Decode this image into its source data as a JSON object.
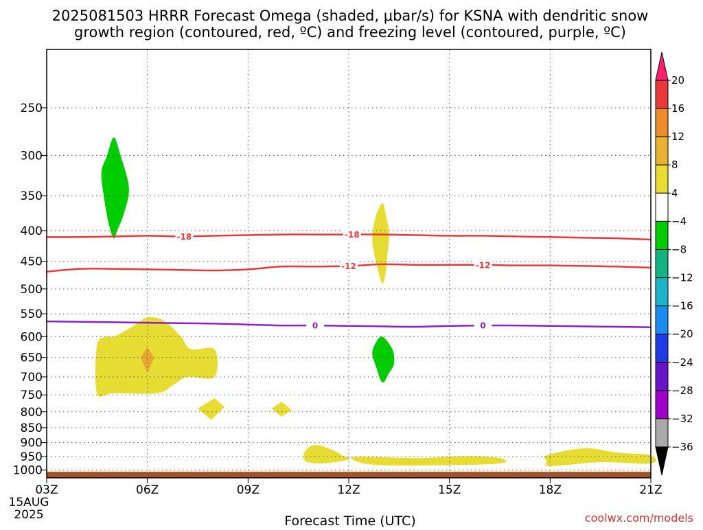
{
  "chart_data": {
    "type": "time-height",
    "title_line1": "2025081503 HRRR Forecast Omega (shaded, μbar/s) for KSNA with dendritic snow",
    "title_line2": "growth region (contoured, red, ºC) and freezing level (contoured, purple, ºC)",
    "xlabel": "Forecast Time (UTC)",
    "credit": "coolwx.com/models",
    "x_ticks": [
      "03Z",
      "06Z",
      "09Z",
      "12Z",
      "15Z",
      "18Z",
      "21Z"
    ],
    "x_tick_hours": [
      3,
      6,
      9,
      12,
      15,
      18,
      21
    ],
    "date_line1": "15AUG",
    "date_line2": "2025",
    "xlim": [
      3,
      21
    ],
    "y_scale": "log",
    "ylim": [
      1030,
      200
    ],
    "y_ticks": [
      250,
      300,
      350,
      400,
      450,
      500,
      550,
      600,
      650,
      700,
      750,
      800,
      850,
      900,
      950,
      1000
    ],
    "y_tick_labels": [
      "250",
      "300",
      "350",
      "400",
      "450",
      "500",
      "550",
      "600",
      "650",
      "700",
      "750",
      "800",
      "850",
      "900",
      "950",
      "1000"
    ],
    "grid": true,
    "contours": [
      {
        "label": "-18",
        "color": "#e8383a",
        "label_hours": [
          7.1,
          12.1
        ],
        "points": [
          [
            3,
            410
          ],
          [
            4,
            410
          ],
          [
            5,
            409
          ],
          [
            6,
            408
          ],
          [
            7,
            409
          ],
          [
            8,
            408
          ],
          [
            9,
            407
          ],
          [
            10,
            406
          ],
          [
            11,
            406
          ],
          [
            12,
            406
          ],
          [
            13,
            406
          ],
          [
            14,
            407
          ],
          [
            15,
            408
          ],
          [
            16,
            408
          ],
          [
            17,
            409
          ],
          [
            18,
            410
          ],
          [
            19,
            411
          ],
          [
            20,
            412
          ],
          [
            21,
            414
          ]
        ]
      },
      {
        "label": "-12",
        "color": "#e8383a",
        "label_hours": [
          12.0,
          16.0
        ],
        "points": [
          [
            3,
            468
          ],
          [
            4,
            463
          ],
          [
            5,
            463
          ],
          [
            6,
            464
          ],
          [
            7,
            465
          ],
          [
            8,
            466
          ],
          [
            9,
            464
          ],
          [
            10,
            459
          ],
          [
            11,
            459
          ],
          [
            12,
            458
          ],
          [
            13,
            455
          ],
          [
            14,
            456
          ],
          [
            15,
            456
          ],
          [
            16,
            456
          ],
          [
            17,
            457
          ],
          [
            18,
            457
          ],
          [
            19,
            458
          ],
          [
            20,
            459
          ],
          [
            21,
            461
          ]
        ]
      },
      {
        "label": "0",
        "color": "#8c1fc8",
        "label_hours": [
          11.0,
          16.0
        ],
        "points": [
          [
            3,
            566
          ],
          [
            4,
            567
          ],
          [
            5,
            568
          ],
          [
            6,
            569
          ],
          [
            7,
            570
          ],
          [
            8,
            571
          ],
          [
            9,
            573
          ],
          [
            10,
            575
          ],
          [
            11,
            575
          ],
          [
            12,
            576
          ],
          [
            13,
            577
          ],
          [
            14,
            578
          ],
          [
            15,
            576
          ],
          [
            16,
            575
          ],
          [
            17,
            575
          ],
          [
            18,
            576
          ],
          [
            19,
            577
          ],
          [
            20,
            578
          ],
          [
            21,
            579
          ]
        ]
      }
    ],
    "omega_regions": [
      {
        "level": "-8 to -4",
        "color": "#00cc00",
        "points": [
          [
            5.0,
            280
          ],
          [
            5.2,
            300
          ],
          [
            5.45,
            340
          ],
          [
            5.3,
            375
          ],
          [
            5.1,
            400
          ],
          [
            5.0,
            412
          ],
          [
            4.85,
            390
          ],
          [
            4.7,
            350
          ],
          [
            4.63,
            320
          ],
          [
            4.8,
            300
          ]
        ]
      },
      {
        "level": "4 to 8",
        "color": "#e6dc32",
        "points": [
          [
            13.0,
            360
          ],
          [
            13.1,
            375
          ],
          [
            13.2,
            405
          ],
          [
            13.15,
            440
          ],
          [
            13.1,
            470
          ],
          [
            13.0,
            490
          ],
          [
            12.85,
            460
          ],
          [
            12.7,
            415
          ],
          [
            12.8,
            380
          ]
        ]
      },
      {
        "level": "-8 to -4",
        "color": "#00cc00",
        "points": [
          [
            13.0,
            600
          ],
          [
            13.3,
            630
          ],
          [
            13.35,
            665
          ],
          [
            13.2,
            690
          ],
          [
            13.0,
            715
          ],
          [
            12.8,
            670
          ],
          [
            12.7,
            640
          ],
          [
            12.8,
            615
          ]
        ]
      },
      {
        "level": "4 to 8",
        "color": "#e6dc32",
        "points": [
          [
            3.0,
            1006
          ],
          [
            21.0,
            1006
          ],
          [
            21.0,
            1012
          ],
          [
            3.0,
            1012
          ]
        ]
      },
      {
        "level": "4 to 8",
        "color": "#e6dc32",
        "points": [
          [
            5.0,
            600
          ],
          [
            5.5,
            580
          ],
          [
            6.0,
            558
          ],
          [
            6.5,
            565
          ],
          [
            7.0,
            600
          ],
          [
            7.3,
            630
          ],
          [
            8.0,
            630
          ],
          [
            8.0,
            700
          ],
          [
            7.2,
            700
          ],
          [
            6.8,
            720
          ],
          [
            6.3,
            745
          ],
          [
            5.0,
            745
          ],
          [
            4.5,
            745
          ],
          [
            4.5,
            620
          ],
          [
            4.8,
            600
          ]
        ]
      },
      {
        "level": "8 to 12",
        "color": "#e6a832",
        "points": [
          [
            6.0,
            625
          ],
          [
            6.2,
            650
          ],
          [
            6.0,
            690
          ],
          [
            5.8,
            650
          ]
        ]
      },
      {
        "level": "4 to 8",
        "color": "#e6dc32",
        "points": [
          [
            8.0,
            760
          ],
          [
            8.3,
            785
          ],
          [
            7.9,
            825
          ],
          [
            7.5,
            790
          ]
        ]
      },
      {
        "level": "4 to 8",
        "color": "#e6dc32",
        "points": [
          [
            10.0,
            770
          ],
          [
            10.3,
            795
          ],
          [
            10.0,
            815
          ],
          [
            9.7,
            790
          ]
        ]
      },
      {
        "level": "4 to 8",
        "color": "#e6dc32",
        "points": [
          [
            11.0,
            908
          ],
          [
            11.5,
            925
          ],
          [
            11.8,
            945
          ],
          [
            12.0,
            960
          ],
          [
            11.2,
            975
          ],
          [
            10.7,
            965
          ],
          [
            10.7,
            930
          ]
        ]
      },
      {
        "level": "4 to 8",
        "color": "#e6dc32",
        "points": [
          [
            12.2,
            950
          ],
          [
            14.0,
            955
          ],
          [
            15.5,
            948
          ],
          [
            16.5,
            955
          ],
          [
            16.5,
            975
          ],
          [
            14.5,
            982
          ],
          [
            13.0,
            982
          ],
          [
            12.3,
            970
          ]
        ]
      },
      {
        "level": "4 to 8",
        "color": "#e6dc32",
        "points": [
          [
            17.9,
            945
          ],
          [
            19.0,
            920
          ],
          [
            20.0,
            935
          ],
          [
            21.0,
            945
          ],
          [
            21.0,
            975
          ],
          [
            19.5,
            970
          ],
          [
            18.0,
            985
          ],
          [
            17.9,
            965
          ]
        ]
      }
    ],
    "ground": {
      "color": "#a0522d",
      "from_pressure": 1007
    },
    "colorbar": {
      "labels": [
        "20",
        "16",
        "12",
        "8",
        "4",
        "−4",
        "−8",
        "−12",
        "−16",
        "−20",
        "−24",
        "−28",
        "−32",
        "−36"
      ],
      "colors": [
        "#ff1f6f",
        "#e83a3a",
        "#ec8c2a",
        "#e8b232",
        "#e8dc32",
        "#ffffff",
        "#00cc00",
        "#14b482",
        "#1ab4c8",
        "#1a8cf0",
        "#1f3ce6",
        "#6a14c8",
        "#a000c8",
        "#aaaaaa",
        "#000000"
      ]
    }
  }
}
